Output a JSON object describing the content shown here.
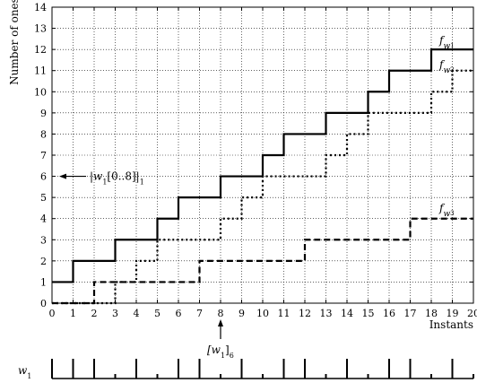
{
  "chart_data": {
    "type": "line",
    "xlabel": "Instants",
    "ylabel": "Number of ones",
    "xlim": [
      0,
      20
    ],
    "ylim": [
      0,
      14
    ],
    "x_ticks": [
      "0",
      "1",
      "2",
      "3",
      "4",
      "5",
      "6",
      "7",
      "8",
      "9",
      "10",
      "11",
      "12",
      "13",
      "14",
      "15",
      "16",
      "17",
      "18",
      "19",
      "20"
    ],
    "y_ticks": [
      "0",
      "1",
      "2",
      "3",
      "4",
      "5",
      "6",
      "7",
      "8",
      "9",
      "10",
      "11",
      "12",
      "13",
      "14"
    ],
    "grid": true,
    "step": "post",
    "series": [
      {
        "name": "f_w1",
        "base": "f",
        "sub": "w",
        "subsub": "1",
        "style": "solid",
        "x": [
          0,
          1,
          2,
          3,
          4,
          5,
          6,
          7,
          8,
          9,
          10,
          11,
          12,
          13,
          14,
          15,
          16,
          17,
          18,
          19,
          20
        ],
        "y": [
          1,
          2,
          2,
          3,
          3,
          4,
          5,
          5,
          6,
          6,
          7,
          8,
          8,
          9,
          9,
          10,
          11,
          11,
          12,
          12,
          12
        ]
      },
      {
        "name": "f_w2",
        "base": "f",
        "sub": "w",
        "subsub": "2",
        "style": "dotted",
        "x": [
          0,
          1,
          2,
          3,
          4,
          5,
          6,
          7,
          8,
          9,
          10,
          11,
          12,
          13,
          14,
          15,
          16,
          17,
          18,
          19,
          20
        ],
        "y": [
          0,
          0,
          0,
          1,
          2,
          3,
          3,
          3,
          4,
          5,
          6,
          6,
          6,
          7,
          8,
          9,
          9,
          9,
          10,
          11,
          11
        ]
      },
      {
        "name": "f_w3",
        "base": "f",
        "sub": "w",
        "subsub": "3",
        "style": "dashed",
        "x": [
          0,
          1,
          2,
          3,
          4,
          5,
          6,
          7,
          8,
          9,
          10,
          11,
          12,
          13,
          14,
          15,
          16,
          17,
          18,
          19,
          20
        ],
        "y": [
          0,
          0,
          1,
          1,
          1,
          1,
          1,
          2,
          2,
          2,
          2,
          2,
          3,
          3,
          3,
          3,
          3,
          4,
          4,
          4,
          4
        ]
      }
    ],
    "annotations": {
      "left_label": {
        "base": "|w",
        "sub": "1",
        "mid": "[0..8]|",
        "sub2": "1",
        "y": 6
      },
      "bottom_label": {
        "base": "[w",
        "sub": "1",
        "mid": "]",
        "sub2": "6",
        "x": 8
      }
    },
    "word": {
      "label": "w",
      "label_sub": "1",
      "bits": [
        1,
        1,
        0,
        1,
        0,
        1,
        1,
        0,
        1,
        0,
        1,
        1,
        0,
        1,
        0,
        1,
        1,
        0,
        1,
        0
      ]
    }
  }
}
